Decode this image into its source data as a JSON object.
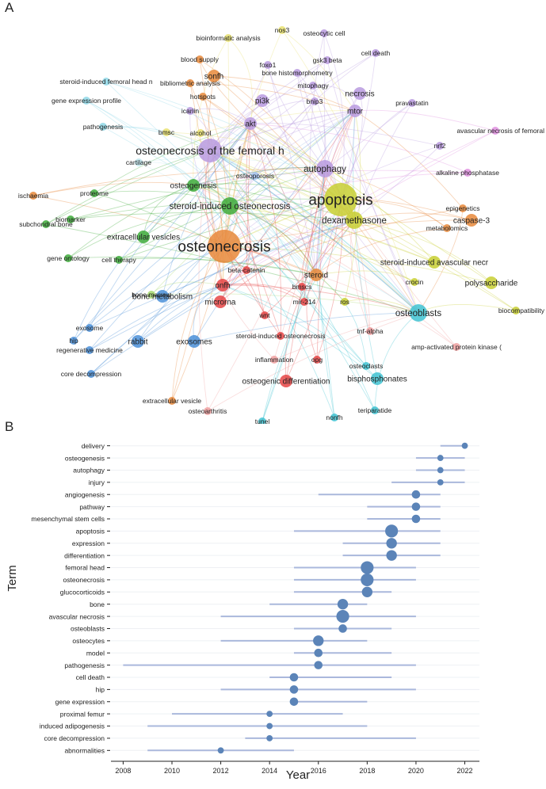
{
  "panel_labels": {
    "a": "A",
    "b": "B"
  },
  "network": {
    "nodes": [
      {
        "label": "apoptosis",
        "color": "#c8cf32",
        "weight": 5
      },
      {
        "label": "osteonecrosis",
        "color": "#e8883a",
        "weight": 5
      },
      {
        "label": "osteonecrosis of the femoral h",
        "color": "#b89adf",
        "weight": 4
      },
      {
        "label": "dexamethasone",
        "color": "#c8cf32",
        "weight": 3
      },
      {
        "label": "autophagy",
        "color": "#b89adf",
        "weight": 3
      },
      {
        "label": "osteoblasts",
        "color": "#3fc3d2",
        "weight": 3
      },
      {
        "label": "steroid-induced osteonecrosis",
        "color": "#3eab3a",
        "weight": 3
      },
      {
        "label": "osteogenic differentiation",
        "color": "#e64545",
        "weight": 2
      },
      {
        "label": "exosomes",
        "color": "#4a8fd8",
        "weight": 2
      },
      {
        "label": "steroid-induced avascular necr",
        "color": "#c8cf32",
        "weight": 2
      },
      {
        "label": "polysaccharide",
        "color": "#c8cf32",
        "weight": 2
      },
      {
        "label": "bisphosphonates",
        "color": "#3fc3d2",
        "weight": 2
      },
      {
        "label": "microrna",
        "color": "#e64545",
        "weight": 2
      },
      {
        "label": "steroid",
        "color": "#e8883a",
        "weight": 2
      },
      {
        "label": "onfh",
        "color": "#e64545",
        "weight": 2
      },
      {
        "label": "osteogenesis",
        "color": "#3eab3a",
        "weight": 2
      },
      {
        "label": "akt",
        "color": "#b89adf",
        "weight": 2
      },
      {
        "label": "pi3k",
        "color": "#b89adf",
        "weight": 2
      },
      {
        "label": "mtor",
        "color": "#b89adf",
        "weight": 2
      },
      {
        "label": "necrosis",
        "color": "#b89adf",
        "weight": 2
      },
      {
        "label": "sonfh",
        "color": "#e8883a",
        "weight": 2
      },
      {
        "label": "extracellular vesicles",
        "color": "#3eab3a",
        "weight": 2
      },
      {
        "label": "bone metabolism",
        "color": "#4a8fd8",
        "weight": 2
      },
      {
        "label": "rabbit",
        "color": "#4a8fd8",
        "weight": 2
      },
      {
        "label": "caspase-3",
        "color": "#e8883a",
        "weight": 2
      },
      {
        "label": "proteome",
        "color": "#3eab3a",
        "weight": 1
      },
      {
        "label": "osteoporosis",
        "color": "#a0c0ec",
        "weight": 1
      },
      {
        "label": "biomarker",
        "color": "#3eab3a",
        "weight": 1
      },
      {
        "label": "ischaemia",
        "color": "#e8883a",
        "weight": 1
      },
      {
        "label": "subchondral bone",
        "color": "#3eab3a",
        "weight": 1
      },
      {
        "label": "gene ontology",
        "color": "#3eab3a",
        "weight": 1
      },
      {
        "label": "cell therapy",
        "color": "#3eab3a",
        "weight": 1
      },
      {
        "label": "bone marrow",
        "color": "#a5d86e",
        "weight": 1
      },
      {
        "label": "hip",
        "color": "#4a8fd8",
        "weight": 1
      },
      {
        "label": "exosome",
        "color": "#4a8fd8",
        "weight": 1
      },
      {
        "label": "regenerative medicine",
        "color": "#4a8fd8",
        "weight": 1
      },
      {
        "label": "core decompression",
        "color": "#4a8fd8",
        "weight": 1
      },
      {
        "label": "extracellular vesicle",
        "color": "#e8883a",
        "weight": 1
      },
      {
        "label": "osteoarthritis",
        "color": "#f0a0a0",
        "weight": 1
      },
      {
        "label": "tunel",
        "color": "#3fc3d2",
        "weight": 1
      },
      {
        "label": "nonfh",
        "color": "#3fc3d2",
        "weight": 1
      },
      {
        "label": "teriparatide",
        "color": "#3fc3d2",
        "weight": 1
      },
      {
        "label": "osteoclasts",
        "color": "#3fc3d2",
        "weight": 1
      },
      {
        "label": "opg",
        "color": "#e64545",
        "weight": 1
      },
      {
        "label": "inflammation",
        "color": "#f0a0a0",
        "weight": 1
      },
      {
        "label": "steroid-induced osteonecrosis",
        "color": "#e64545",
        "weight": 1
      },
      {
        "label": "wnt",
        "color": "#e64545",
        "weight": 1
      },
      {
        "label": "mir-214",
        "color": "#e64545",
        "weight": 1
      },
      {
        "label": "bmscs",
        "color": "#e64545",
        "weight": 1
      },
      {
        "label": "beta-catenin",
        "color": "#e64545",
        "weight": 1
      },
      {
        "label": "ros",
        "color": "#c8cf32",
        "weight": 1
      },
      {
        "label": "tnf-alpha",
        "color": "#f0a0a0",
        "weight": 1
      },
      {
        "label": "amp-activated protein kinase (",
        "color": "#f0a0a0",
        "weight": 1
      },
      {
        "label": "biocompatibility",
        "color": "#c8cf32",
        "weight": 1
      },
      {
        "label": "crocin",
        "color": "#c8cf32",
        "weight": 1
      },
      {
        "label": "metabolomics",
        "color": "#e8883a",
        "weight": 1
      },
      {
        "label": "epigenetics",
        "color": "#e8883a",
        "weight": 1
      },
      {
        "label": "alkaline phosphatase",
        "color": "#e090e0",
        "weight": 1
      },
      {
        "label": "nrf2",
        "color": "#b89adf",
        "weight": 1
      },
      {
        "label": "avascular necrosis of femoral",
        "color": "#e090e0",
        "weight": 1
      },
      {
        "label": "pravastatin",
        "color": "#b89adf",
        "weight": 1
      },
      {
        "label": "bnip3",
        "color": "#b89adf",
        "weight": 1
      },
      {
        "label": "mitophagy",
        "color": "#b89adf",
        "weight": 1
      },
      {
        "label": "bone histomorphometry",
        "color": "#b89adf",
        "weight": 1
      },
      {
        "label": "foxo1",
        "color": "#b89adf",
        "weight": 1
      },
      {
        "label": "gsk3 beta",
        "color": "#b89adf",
        "weight": 1
      },
      {
        "label": "cell death",
        "color": "#b89adf",
        "weight": 1
      },
      {
        "label": "osteocytic cell",
        "color": "#b89adf",
        "weight": 1
      },
      {
        "label": "nos3",
        "color": "#e8e070",
        "weight": 1
      },
      {
        "label": "bioinformatic analysis",
        "color": "#e8e070",
        "weight": 1
      },
      {
        "label": "blood supply",
        "color": "#e8883a",
        "weight": 1
      },
      {
        "label": "bibliometric analysis",
        "color": "#e8883a",
        "weight": 1
      },
      {
        "label": "hotspots",
        "color": "#e8883a",
        "weight": 1
      },
      {
        "label": "icariin",
        "color": "#b89adf",
        "weight": 1
      },
      {
        "label": "alcohol",
        "color": "#e8e070",
        "weight": 1
      },
      {
        "label": "bmsc",
        "color": "#e8e070",
        "weight": 1
      },
      {
        "label": "cartilage",
        "color": "#bfe8ef",
        "weight": 1
      },
      {
        "label": "pathogenesis",
        "color": "#8fd8e8",
        "weight": 1
      },
      {
        "label": "gene expression profile",
        "color": "#8fd8e8",
        "weight": 1
      },
      {
        "label": "steroid-induced femoral head n",
        "color": "#8fd8e8",
        "weight": 1
      }
    ]
  },
  "chart_data": {
    "type": "timeline",
    "xlabel": "Year",
    "ylabel": "Term",
    "xlim": [
      2007.5,
      2022.6
    ],
    "xticks": [
      2008,
      2010,
      2012,
      2014,
      2016,
      2018,
      2020,
      2022
    ],
    "terms": [
      {
        "term": "delivery",
        "start": 2021,
        "end": 2022,
        "peak": 2022,
        "strength": 1
      },
      {
        "term": "osteogenesis",
        "start": 2020,
        "end": 2022,
        "peak": 2021,
        "strength": 1
      },
      {
        "term": "autophagy",
        "start": 2020,
        "end": 2022,
        "peak": 2021,
        "strength": 1
      },
      {
        "term": "injury",
        "start": 2019,
        "end": 2022,
        "peak": 2021,
        "strength": 1
      },
      {
        "term": "angiogenesis",
        "start": 2016,
        "end": 2021,
        "peak": 2020,
        "strength": 2
      },
      {
        "term": "pathway",
        "start": 2018,
        "end": 2021,
        "peak": 2020,
        "strength": 2
      },
      {
        "term": "mesenchymal stem cells",
        "start": 2018,
        "end": 2021,
        "peak": 2020,
        "strength": 2
      },
      {
        "term": "apoptosis",
        "start": 2015,
        "end": 2021,
        "peak": 2019,
        "strength": 4
      },
      {
        "term": "expression",
        "start": 2017,
        "end": 2021,
        "peak": 2019,
        "strength": 3
      },
      {
        "term": "differentiation",
        "start": 2017,
        "end": 2021,
        "peak": 2019,
        "strength": 3
      },
      {
        "term": "femoral head",
        "start": 2015,
        "end": 2020,
        "peak": 2018,
        "strength": 4
      },
      {
        "term": "osteonecrosis",
        "start": 2015,
        "end": 2020,
        "peak": 2018,
        "strength": 4
      },
      {
        "term": "glucocorticoids",
        "start": 2015,
        "end": 2019,
        "peak": 2018,
        "strength": 3
      },
      {
        "term": "bone",
        "start": 2014,
        "end": 2018,
        "peak": 2017,
        "strength": 3
      },
      {
        "term": "avascular necrosis",
        "start": 2012,
        "end": 2020,
        "peak": 2017,
        "strength": 4
      },
      {
        "term": "osteoblasts",
        "start": 2015,
        "end": 2019,
        "peak": 2017,
        "strength": 2
      },
      {
        "term": "osteocytes",
        "start": 2012,
        "end": 2018,
        "peak": 2016,
        "strength": 3
      },
      {
        "term": "model",
        "start": 2015,
        "end": 2019,
        "peak": 2016,
        "strength": 2
      },
      {
        "term": "pathogenesis",
        "start": 2008,
        "end": 2020,
        "peak": 2016,
        "strength": 2
      },
      {
        "term": "cell death",
        "start": 2014,
        "end": 2019,
        "peak": 2015,
        "strength": 2
      },
      {
        "term": "hip",
        "start": 2012,
        "end": 2020,
        "peak": 2015,
        "strength": 2
      },
      {
        "term": "gene expression",
        "start": 2015,
        "end": 2018,
        "peak": 2015,
        "strength": 2
      },
      {
        "term": "proximal femur",
        "start": 2010,
        "end": 2017,
        "peak": 2014,
        "strength": 1
      },
      {
        "term": "induced adipogenesis",
        "start": 2009,
        "end": 2018,
        "peak": 2014,
        "strength": 1
      },
      {
        "term": "core decompression",
        "start": 2013,
        "end": 2020,
        "peak": 2014,
        "strength": 1
      },
      {
        "term": "abnormalities",
        "start": 2009,
        "end": 2015,
        "peak": 2012,
        "strength": 1
      }
    ],
    "colors": {
      "dot": "#5b84b8",
      "line": "#aab8dc",
      "grid": "#eef0f4",
      "axis": "#222222"
    }
  }
}
